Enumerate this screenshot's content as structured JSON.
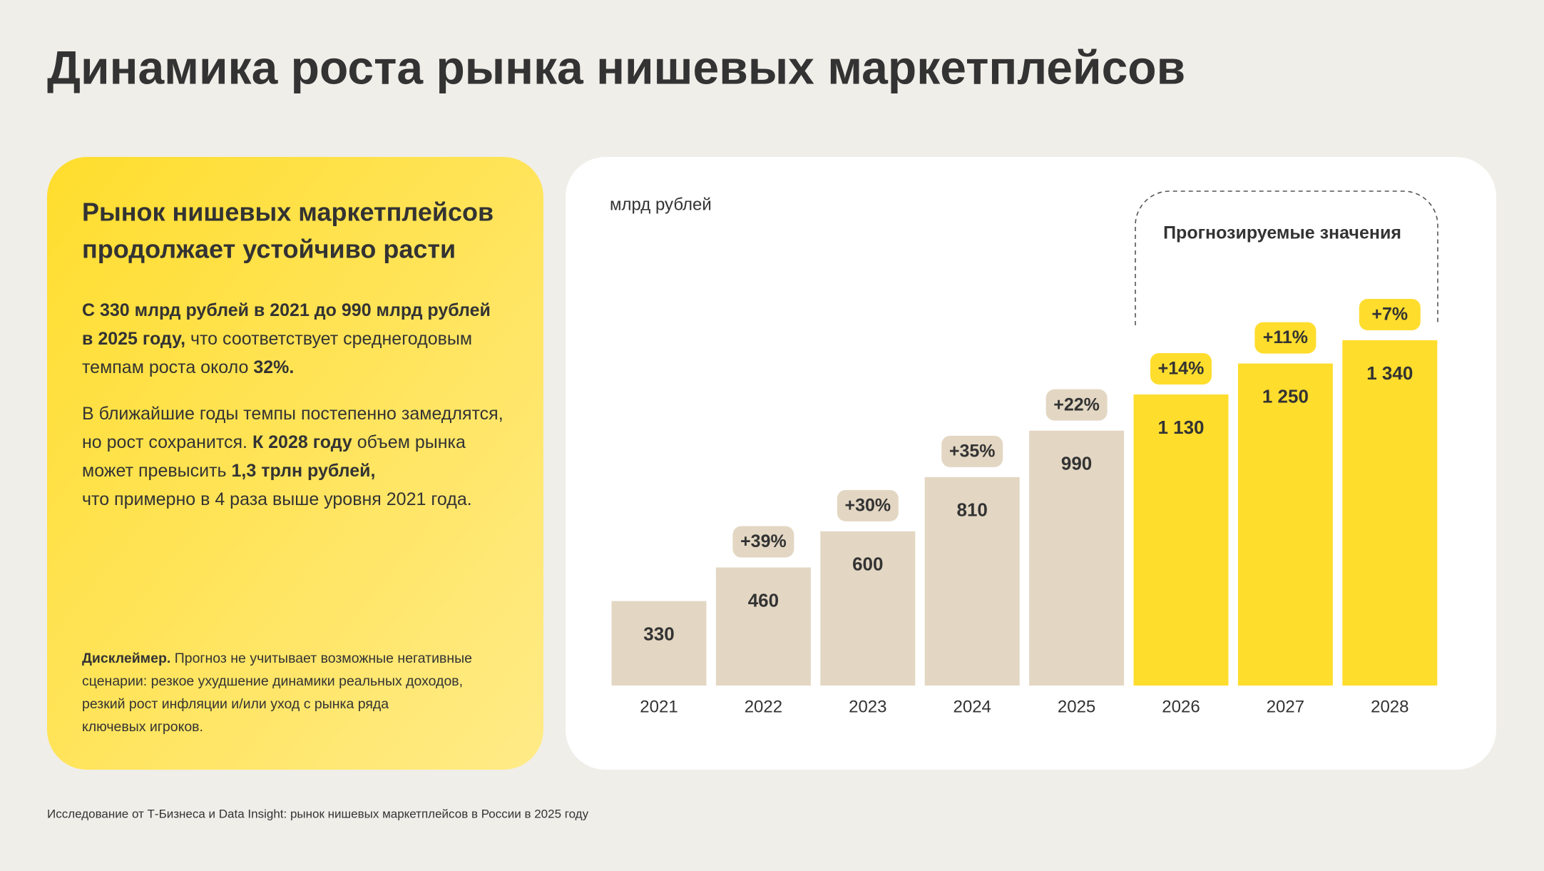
{
  "header": {
    "title": "Динамика роста рынка нишевых маркетплейсов"
  },
  "panel": {
    "heading": [
      "Рынок нишевых маркетплейсов",
      "продолжает устойчиво расти"
    ],
    "paragraphs": [
      {
        "lines": [
          [
            {
              "text": "С 330 млрд рублей в 2021 до 990 млрд рублей",
              "bold": true
            }
          ],
          [
            {
              "text": "в 2025 году,",
              "bold": true
            },
            {
              "text": " что соответствует среднегодовым",
              "bold": false
            }
          ],
          [
            {
              "text": "темпам роста около ",
              "bold": false
            },
            {
              "text": "32%.",
              "bold": true
            }
          ]
        ]
      },
      {
        "lines": [
          [
            {
              "text": "В ближайшие годы темпы постепенно замедлятся,",
              "bold": false
            }
          ],
          [
            {
              "text": "но рост сохранится. ",
              "bold": false
            },
            {
              "text": "К 2028 году",
              "bold": true
            },
            {
              "text": " объем рынка",
              "bold": false
            }
          ],
          [
            {
              "text": "может превысить ",
              "bold": false
            },
            {
              "text": "1,3 трлн рублей,",
              "bold": true
            }
          ],
          [
            {
              "text": "что примерно в 4 раза выше уровня 2021 года.",
              "bold": false
            }
          ]
        ]
      }
    ],
    "disclaimer": {
      "lines": [
        [
          {
            "text": "Дисклеймер.",
            "bold": true
          },
          {
            "text": " Прогноз не учитывает возможные негативные",
            "bold": false
          }
        ],
        [
          {
            "text": "сценарии: резкое ухудшение динамики реальных доходов,",
            "bold": false
          }
        ],
        [
          {
            "text": "резкий рост инфляции и/или уход с рынка ряда",
            "bold": false
          }
        ],
        [
          {
            "text": "ключевых игроков.",
            "bold": false
          }
        ]
      ]
    }
  },
  "chart_data": {
    "type": "bar",
    "y_label": "млрд рублей",
    "forecast_label": "Прогнозируемые значения",
    "categories": [
      "2021",
      "2022",
      "2023",
      "2024",
      "2025",
      "2026",
      "2027",
      "2028"
    ],
    "values": [
      330,
      460,
      600,
      810,
      990,
      1130,
      1250,
      1340
    ],
    "value_labels": [
      "330",
      "460",
      "600",
      "810",
      "990",
      "1 130",
      "1 250",
      "1 340"
    ],
    "growth_labels": [
      null,
      "+39%",
      "+30%",
      "+35%",
      "+22%",
      "+14%",
      "+11%",
      "+7%"
    ],
    "colors": [
      "#e3d7c3",
      "#e3d7c3",
      "#e3d7c3",
      "#e3d7c3",
      "#e3d7c3",
      "#ffdd2d",
      "#ffdd2d",
      "#ffdd2d"
    ],
    "ylim": [
      0,
      1340
    ]
  },
  "footer": {
    "source": "Исследование от Т-Бизнеса и Data Insight: рынок нишевых маркетплейсов в России в 2025 году"
  }
}
